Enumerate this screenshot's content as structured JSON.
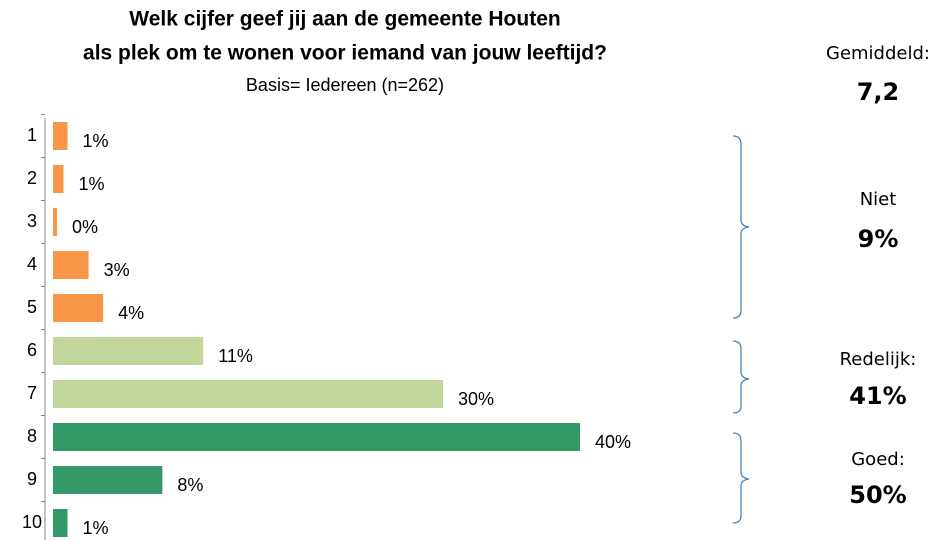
{
  "chart_data": {
    "type": "barh",
    "title": "Welk cijfer geef jij aan de gemeente Houten",
    "title2": "als plek om te wonen voor iemand van jouw leeftijd?",
    "subtitle": "Basis= Iedereen (n=262)",
    "categories": [
      "1",
      "2",
      "3",
      "4",
      "5",
      "6",
      "7",
      "8",
      "9",
      "10"
    ],
    "values": [
      1.1,
      0.8,
      0.3,
      2.7,
      3.8,
      11.4,
      29.6,
      40,
      8.3,
      1.1
    ],
    "value_labels": [
      "1%",
      "1%",
      "0%",
      "3%",
      "4%",
      "11%",
      "30%",
      "40%",
      "8%",
      "1%"
    ],
    "colors": [
      "#f79646",
      "#f79646",
      "#f79646",
      "#f79646",
      "#f79646",
      "#c3d69b",
      "#c3d69b",
      "#339966",
      "#339966",
      "#339966"
    ],
    "average": {
      "label": "Gemiddeld:",
      "value": "7,2",
      "color": "#1f77c4"
    },
    "groups": [
      {
        "label": "Niet",
        "value": "9%",
        "color": "#e87b1e"
      },
      {
        "label": "Redelijk:",
        "value": "41%",
        "color": "#9bbb59"
      },
      {
        "label": "Goed:",
        "value": "50%",
        "color": "#339966"
      }
    ]
  }
}
